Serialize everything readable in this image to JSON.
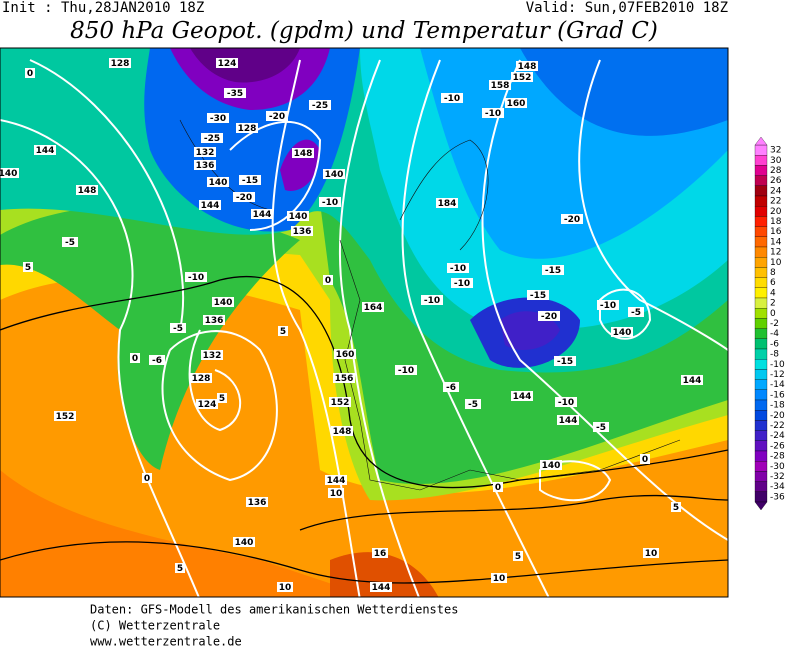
{
  "header": {
    "init": "Init : Thu,28JAN2010 18Z",
    "valid": "Valid: Sun,07FEB2010 18Z",
    "title": "850 hPa Geopot. (gpdm) und Temperatur (Grad C)"
  },
  "colorbar": {
    "values": [
      32,
      30,
      28,
      26,
      24,
      22,
      20,
      18,
      16,
      14,
      12,
      10,
      8,
      6,
      4,
      2,
      0,
      -2,
      -4,
      -6,
      -8,
      -10,
      -12,
      -14,
      -16,
      -18,
      -20,
      -22,
      -24,
      -26,
      -28,
      -30,
      -32,
      -34,
      -36
    ],
    "colors": [
      "#ff80ff",
      "#ff40d0",
      "#e00090",
      "#c00050",
      "#a00010",
      "#c00000",
      "#e00000",
      "#ff2000",
      "#ff4800",
      "#ff6800",
      "#ff8800",
      "#ffa400",
      "#ffc000",
      "#ffdc00",
      "#fff000",
      "#d8f040",
      "#a0e000",
      "#60d000",
      "#20c030",
      "#00c070",
      "#00d0a8",
      "#00e0e0",
      "#00c8f0",
      "#00a8ff",
      "#0088ff",
      "#0068f0",
      "#0048e0",
      "#2030d0",
      "#4020c8",
      "#6010c0",
      "#8000c0",
      "#a000b8",
      "#8000a8",
      "#600088",
      "#400068"
    ]
  },
  "map_labels": [
    128,
    124,
    -35,
    -30,
    -25,
    -20,
    128,
    -25,
    132,
    136,
    148,
    144,
    140,
    -15,
    140,
    148,
    140,
    -20,
    -10,
    144,
    144,
    140,
    136,
    184,
    -10,
    -10,
    158,
    160,
    152,
    148,
    -20,
    -5,
    -10,
    0,
    -10,
    -10,
    -15,
    -10,
    -15,
    -20,
    164,
    140,
    -5,
    136,
    5,
    132,
    -10,
    -5,
    140,
    160,
    -6,
    0,
    128,
    124,
    5,
    156,
    -10,
    -6,
    -15,
    144,
    -10,
    152,
    -5,
    144,
    -5,
    148,
    152,
    144,
    0,
    144,
    10,
    0,
    140,
    0,
    136,
    140,
    5,
    16,
    5,
    10,
    5,
    10,
    144,
    10,
    0,
    5
  ],
  "footer": [
    "Daten: GFS-Modell des amerikanischen Wetterdienstes",
    "(C) Wetterzentrale",
    "www.wetterzentrale.de"
  ]
}
